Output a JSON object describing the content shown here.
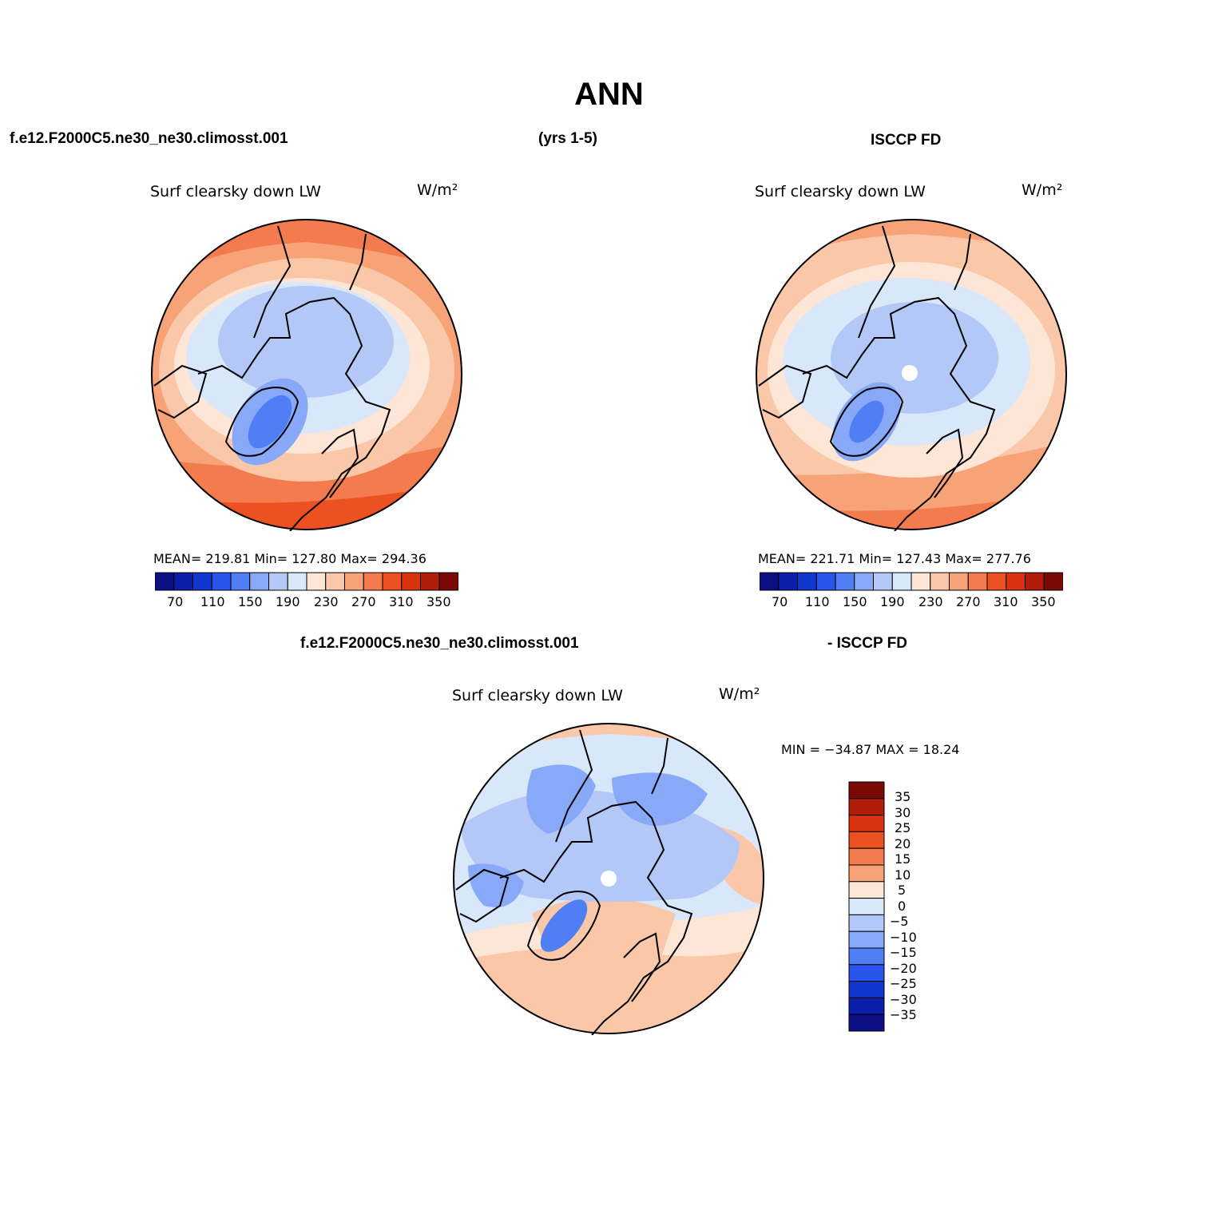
{
  "figure": {
    "title": "ANN",
    "case_name": "f.e12.F2000C5.ne30_ne30.climosst.001",
    "years": "(yrs 1-5)",
    "obs_name": "ISCCP FD",
    "diff_case_name": "f.e12.F2000C5.ne30_ne30.climosst.001",
    "diff_obs_name": "- ISCCP FD"
  },
  "panels": {
    "model": {
      "variable": "Surf clearsky down LW",
      "units": "W/m²",
      "stats": "MEAN= 219.81   Min= 127.80   Max= 294.36"
    },
    "obs": {
      "variable": "Surf clearsky down LW",
      "units": "W/m²",
      "stats": "MEAN= 221.71   Min= 127.43   Max= 277.76"
    },
    "diff": {
      "variable": "Surf clearsky down LW",
      "units": "W/m²",
      "stats": "MIN = −34.87  MAX =   18.24"
    }
  },
  "colorbars": {
    "abs": {
      "colors": [
        "#0a0f84",
        "#0b1ea8",
        "#1236d0",
        "#2a55ec",
        "#4f7ef5",
        "#88a9f7",
        "#b3c8f6",
        "#d9e7fb",
        "#fde6d6",
        "#fbc7a9",
        "#f8a278",
        "#f47b4e",
        "#ec5122",
        "#d8330e",
        "#b01e0b",
        "#7b0a06"
      ],
      "labels": [
        "70",
        "110",
        "150",
        "190",
        "230",
        "270",
        "310",
        "350"
      ]
    },
    "diff": {
      "colors": [
        "#7b0a06",
        "#b01e0b",
        "#d8330e",
        "#ec5122",
        "#f47b4e",
        "#f8a278",
        "#fde6d6",
        "#d9e7fb",
        "#b3c8f6",
        "#88a9f7",
        "#4f7ef5",
        "#2a55ec",
        "#1236d0",
        "#0b1ea8",
        "#0a0f84"
      ],
      "labels": [
        "35",
        "30",
        "25",
        "20",
        "15",
        "10",
        "5",
        "0",
        "−5",
        "−10",
        "−15",
        "−20",
        "−25",
        "−30",
        "−35"
      ]
    }
  }
}
